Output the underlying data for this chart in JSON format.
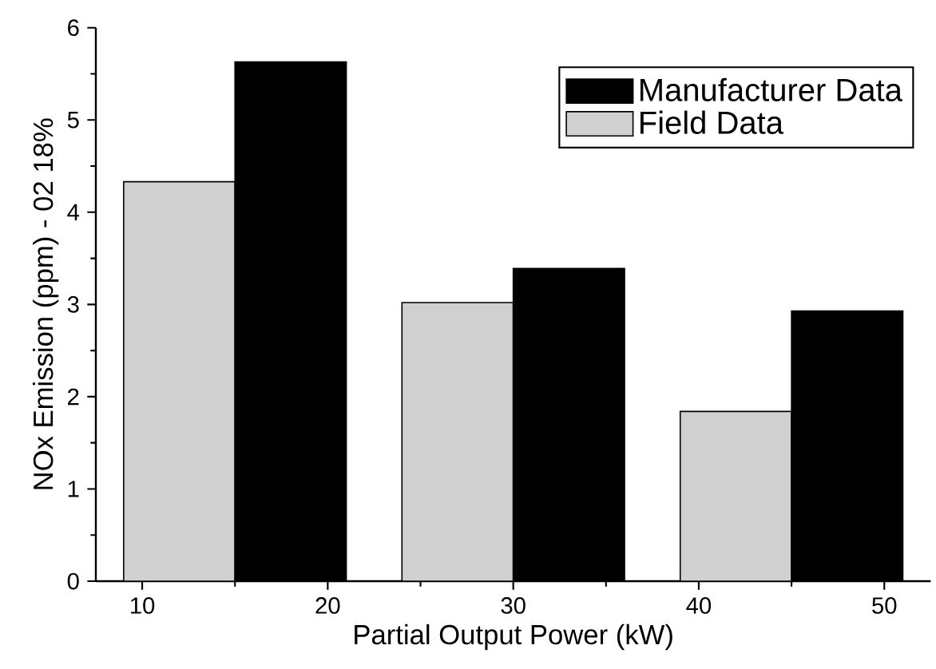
{
  "chart_data": {
    "type": "bar",
    "xlabel": "Partial Output Power (kW)",
    "ylabel": "NOx Emission (ppm) - 02 18%",
    "series": [
      {
        "name": "Field Data",
        "color": "#d0d0d0",
        "x": [
          12,
          27,
          42
        ],
        "values": [
          4.33,
          3.02,
          1.84
        ]
      },
      {
        "name": "Manufacturer Data",
        "color": "#000000",
        "x": [
          18,
          33,
          48
        ],
        "values": [
          5.63,
          3.39,
          2.93
        ]
      }
    ],
    "xlim": [
      7.5,
      52.5
    ],
    "xticks": [
      10,
      20,
      30,
      40,
      50
    ],
    "ylim": [
      0,
      6
    ],
    "yticks": [
      0,
      1,
      2,
      3,
      4,
      5,
      6
    ],
    "legend": "top right",
    "grid": false
  }
}
